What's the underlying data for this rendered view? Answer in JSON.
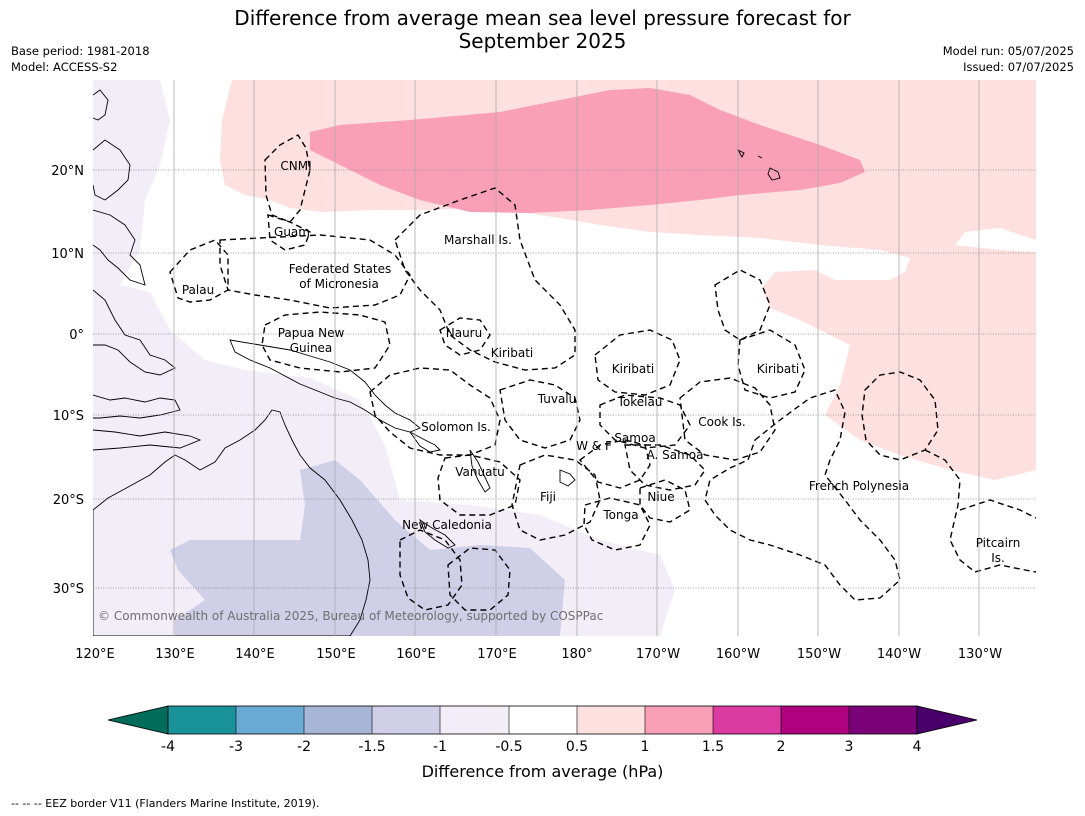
{
  "title_line1": "Difference from average mean sea level pressure forecast for",
  "title_line2": "September 2025",
  "meta": {
    "base_period": "Base period: 1981-2018",
    "model": "Model: ACCESS-S2",
    "model_run": "Model run: 05/07/2025",
    "issued": "Issued: 07/07/2025"
  },
  "map": {
    "lon_ticks": [
      "120°E",
      "130°E",
      "140°E",
      "150°E",
      "160°E",
      "170°E",
      "180°",
      "170°W",
      "160°W",
      "150°W",
      "140°W",
      "130°W"
    ],
    "lat_ticks": [
      "20°N",
      "10°N",
      "0°",
      "10°S",
      "20°S",
      "30°S"
    ],
    "regions": [
      "CNMI",
      "Guam",
      "Marshall Is.",
      "Federated States",
      "of Micronesia",
      "Palau",
      "Papua New",
      "Guinea",
      "Nauru",
      "Kiribati",
      "Kiribati",
      "Kiribati",
      "Tuvalu",
      "Tokelau",
      "Solomon Is.",
      "Samoa",
      "W & F",
      "A. Samoa",
      "Cook Is.",
      "Vanuatu",
      "Fiji",
      "Niue",
      "Tonga",
      "French Polynesia",
      "New Caledonia",
      "Pitcairn",
      "Is."
    ],
    "copyright": "© Commonwealth of Australia 2025, Bureau of Meteorology, supported by COSPPac"
  },
  "colorbar": {
    "ticks": [
      "-4",
      "-3",
      "-2",
      "-1.5",
      "-1",
      "-0.5",
      "0.5",
      "1",
      "1.5",
      "2",
      "3",
      "4"
    ],
    "colors": [
      "#1a9299",
      "#6aabd6",
      "#a7b6d6",
      "#cfcfe8",
      "#f3edf7",
      "#ffffff",
      "#fde0df",
      "#f99fb8",
      "#db3aa0",
      "#ae027e",
      "#7a0177"
    ],
    "under_color": "#016c59",
    "over_color": "#49006a",
    "label": "Difference from average (hPa)"
  },
  "footnote": "--  --  -- EEZ border V11 (Flanders Marine Institute, 2019)."
}
